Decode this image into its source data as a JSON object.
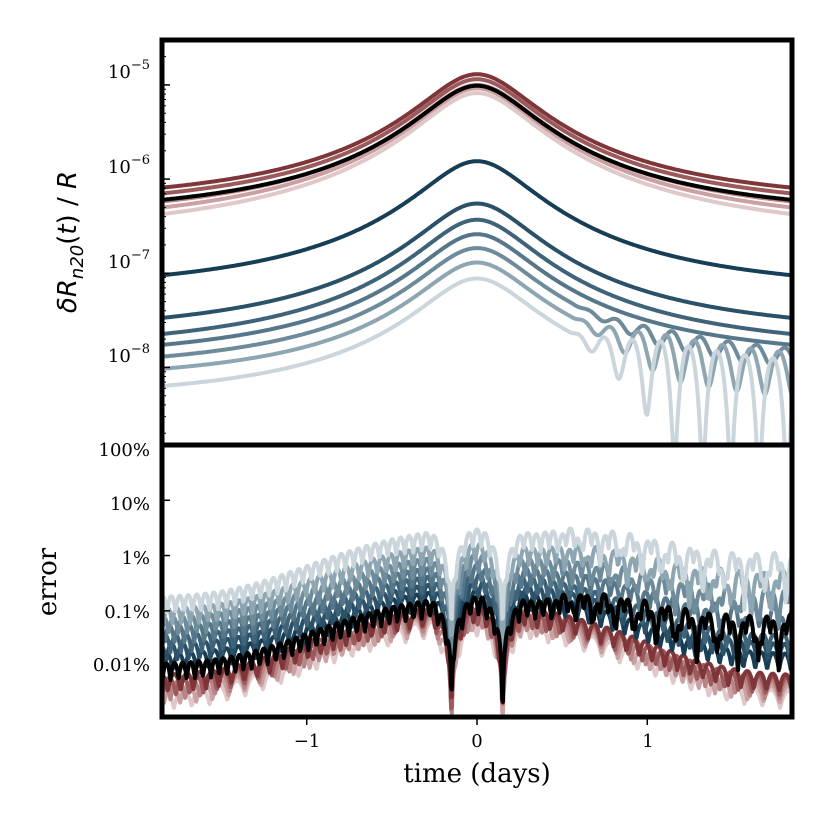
{
  "chart_data": [
    {
      "type": "line",
      "panel": "top",
      "ylabel": "δR_n20(t) / R",
      "ylabel_parts": {
        "delta": "δ",
        "R": "R",
        "sub": "n20",
        "t_open": "(",
        "t": "t",
        "t_close": ")",
        "slash": " / ",
        "R2": "R"
      },
      "yscale": "log",
      "ylim": [
        1.5e-09,
        3e-05
      ],
      "xlim": [
        -1.85,
        1.85
      ],
      "ytick_labels": [
        {
          "value": 1e-05,
          "base": "10",
          "exp": "−5"
        },
        {
          "value": 1e-06,
          "base": "10",
          "exp": "−6"
        },
        {
          "value": 1e-07,
          "base": "10",
          "exp": "−7"
        },
        {
          "value": 1e-08,
          "base": "10",
          "exp": "−8"
        }
      ],
      "series": [
        {
          "name": "red-1",
          "color": "#7e3639",
          "peak": 1.3e-05,
          "floor": 4.9e-07,
          "noise": 0
        },
        {
          "name": "red-2",
          "color": "#9c5a5d",
          "peak": 1.15e-05,
          "floor": 4.2e-07,
          "noise": 0
        },
        {
          "name": "red-3",
          "color": "#b88587",
          "peak": 1e-05,
          "floor": 3.3e-07,
          "noise": 0
        },
        {
          "name": "red-4",
          "color": "#caa0a2",
          "peak": 9.2e-06,
          "floor": 2.7e-07,
          "noise": 0
        },
        {
          "name": "red-5",
          "color": "#e0c8c9",
          "peak": 8.2e-06,
          "floor": 2.2e-07,
          "noise": 0
        },
        {
          "name": "reference",
          "color": "#000000",
          "peak": 9.8e-06,
          "floor": 3.6e-07,
          "noise": 0
        },
        {
          "name": "blue-1",
          "color": "#173e55",
          "peak": 1.55e-06,
          "floor": 5.7e-08,
          "noise": 0
        },
        {
          "name": "blue-2",
          "color": "#2b5169",
          "peak": 5.5e-07,
          "floor": 2e-08,
          "noise": 0
        },
        {
          "name": "blue-3",
          "color": "#3f6479",
          "peak": 3.7e-07,
          "floor": 1.35e-08,
          "noise": 0
        },
        {
          "name": "blue-4",
          "color": "#557789",
          "peak": 2.6e-07,
          "floor": 1.1e-08,
          "noise": 0
        },
        {
          "name": "blue-5",
          "color": "#6e8b9b",
          "peak": 1.85e-07,
          "floor": 8.5e-09,
          "noise": 0.25
        },
        {
          "name": "blue-6",
          "color": "#8ea5b2",
          "peak": 1.3e-07,
          "floor": 6.5e-09,
          "noise": 0.55
        },
        {
          "name": "blue-7",
          "color": "#cbd6dc",
          "peak": 8.8e-08,
          "floor": 4.2e-09,
          "noise": 1.0
        }
      ]
    },
    {
      "type": "line",
      "panel": "bottom",
      "ylabel": "error",
      "xlabel": "time (days)",
      "yscale": "log",
      "ylim": [
        0.0012,
        100
      ],
      "xlim": [
        -1.85,
        1.85
      ],
      "ytick_labels": [
        {
          "value": 100,
          "label": "100%"
        },
        {
          "value": 10,
          "label": "10%"
        },
        {
          "value": 1,
          "label": "1%"
        },
        {
          "value": 0.1,
          "label": "0.1%"
        },
        {
          "value": 0.01,
          "label": "0.01%"
        }
      ],
      "xtick_labels": [
        {
          "value": -1,
          "label": "−1"
        },
        {
          "value": 0,
          "label": "0"
        },
        {
          "value": 1,
          "label": "1"
        }
      ],
      "series": [
        {
          "name": "red-5",
          "color": "#e0c8c9",
          "peak": 0.055,
          "edge": 0.0025
        },
        {
          "name": "red-4",
          "color": "#caa0a2",
          "peak": 0.065,
          "edge": 0.003
        },
        {
          "name": "red-3",
          "color": "#b88587",
          "peak": 0.075,
          "edge": 0.0036
        },
        {
          "name": "red-2",
          "color": "#9c5a5d",
          "peak": 0.085,
          "edge": 0.0043
        },
        {
          "name": "red-1",
          "color": "#7e3639",
          "peak": 0.095,
          "edge": 0.005
        },
        {
          "name": "blue-1",
          "color": "#173e55",
          "peak": 0.18,
          "edge": 0.012
        },
        {
          "name": "blue-2",
          "color": "#2b5169",
          "peak": 0.25,
          "edge": 0.018
        },
        {
          "name": "blue-3",
          "color": "#3f6479",
          "peak": 0.35,
          "edge": 0.026
        },
        {
          "name": "blue-4",
          "color": "#557789",
          "peak": 0.5,
          "edge": 0.038
        },
        {
          "name": "blue-5",
          "color": "#6e8b9b",
          "peak": 0.75,
          "edge": 0.055
        },
        {
          "name": "blue-6",
          "color": "#8ea5b2",
          "peak": 1.2,
          "edge": 0.08
        },
        {
          "name": "blue-7",
          "color": "#cbd6dc",
          "peak": 2.2,
          "edge": 0.13
        },
        {
          "name": "reference",
          "color": "#000000",
          "peak": 0.13,
          "edge": 0.008
        }
      ]
    }
  ]
}
